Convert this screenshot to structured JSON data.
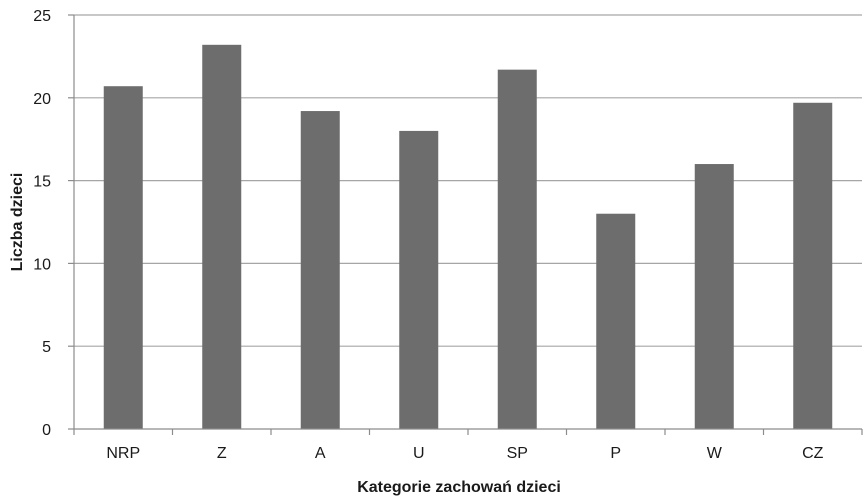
{
  "chart_data": {
    "type": "bar",
    "categories": [
      "NRP",
      "Z",
      "A",
      "U",
      "SP",
      "P",
      "W",
      "CZ"
    ],
    "values": [
      20.7,
      23.2,
      19.2,
      18.0,
      21.7,
      13.0,
      16.0,
      19.7
    ],
    "xlabel": "Kategorie zachowań dzieci",
    "ylabel": "Liczba dzieci",
    "ylim": [
      0,
      25
    ],
    "yticks": [
      0,
      5,
      10,
      15,
      20,
      25
    ],
    "grid": true,
    "legend": "none",
    "bar_color": "#6d6d6d",
    "grid_color": "#a6a6a6",
    "axis_color": "#8c8c8c"
  }
}
